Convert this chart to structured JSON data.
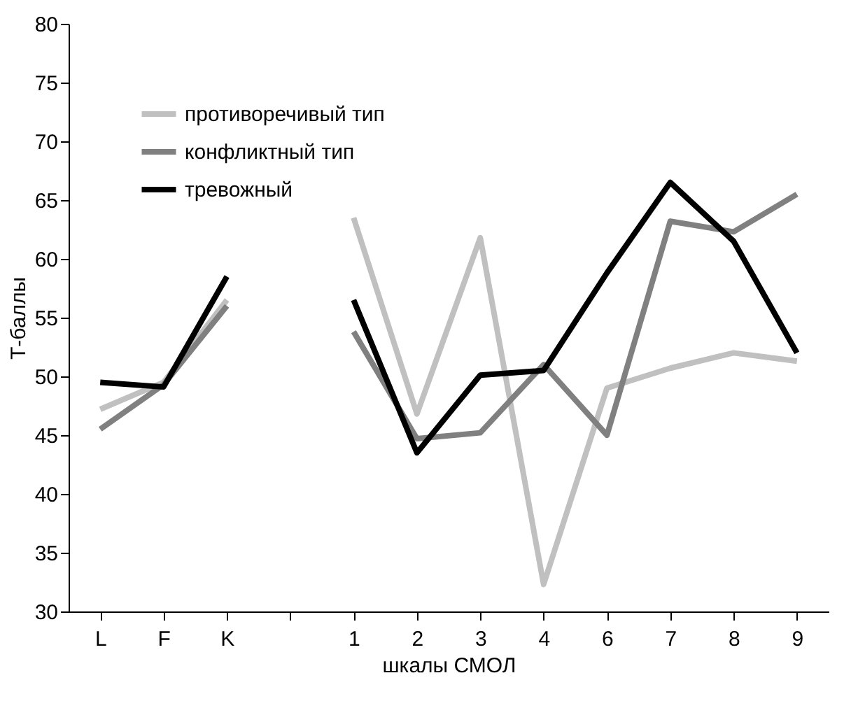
{
  "chart_data": {
    "type": "line",
    "xlabel": "шкалы СМОЛ",
    "ylabel": "Т-баллы",
    "categories": [
      "L",
      "F",
      "K",
      null,
      "1",
      "2",
      "3",
      "4",
      "6",
      "7",
      "8",
      "9"
    ],
    "ylim": [
      30,
      80
    ],
    "yticks": [
      30,
      35,
      40,
      45,
      50,
      55,
      60,
      65,
      70,
      75,
      80
    ],
    "legend": "top left",
    "series": [
      {
        "name": "противоречивый тип",
        "color": "#c0c0c0",
        "values": [
          47.2,
          49.5,
          56.5,
          null,
          63.5,
          46.8,
          61.8,
          32.3,
          49,
          50.7,
          52,
          51.3
        ]
      },
      {
        "name": "конфликтный тип",
        "color": "#808080",
        "values": [
          45.5,
          49.3,
          56,
          null,
          53.8,
          44.7,
          45.2,
          51,
          45,
          63.2,
          62.3,
          65.5
        ]
      },
      {
        "name": "тревожный",
        "color": "#000000",
        "values": [
          49.5,
          49.1,
          58.5,
          null,
          56.5,
          43.5,
          50.1,
          50.5,
          58.8,
          66.5,
          61.5,
          52
        ]
      }
    ]
  }
}
